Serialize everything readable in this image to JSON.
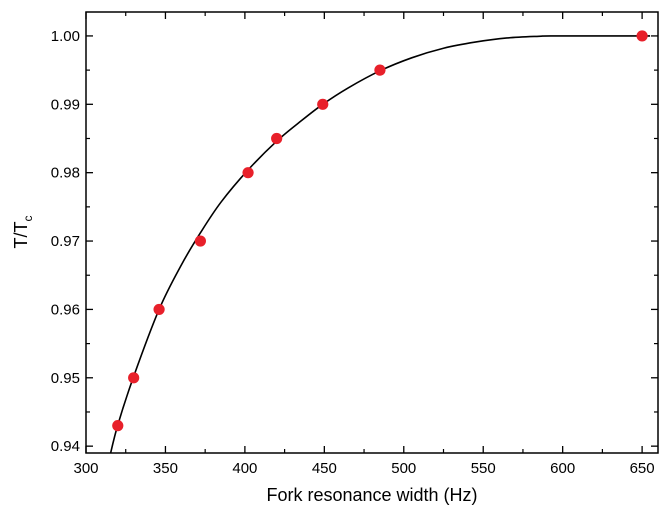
{
  "chart_data": {
    "type": "scatter",
    "xlabel": "Fork resonance width (Hz)",
    "ylabel": {
      "main": "T/T",
      "subscript": "c"
    },
    "xlim": [
      300,
      660
    ],
    "ylim": [
      0.939,
      1.0035
    ],
    "xticks": [
      300,
      350,
      400,
      450,
      500,
      550,
      600,
      650
    ],
    "xtick_labels": [
      "300",
      "350",
      "400",
      "450",
      "500",
      "550",
      "600",
      "650"
    ],
    "yticks": [
      0.94,
      0.95,
      0.96,
      0.97,
      0.98,
      0.99,
      1.0
    ],
    "ytick_labels": [
      "0.94",
      "0.95",
      "0.96",
      "0.97",
      "0.98",
      "0.99",
      "1.00"
    ],
    "grid": false,
    "legend": "none",
    "series": [
      {
        "kind": "points",
        "marker_color": "#e8202a",
        "points": [
          {
            "x": 320,
            "y": 0.943
          },
          {
            "x": 330,
            "y": 0.95
          },
          {
            "x": 346,
            "y": 0.96
          },
          {
            "x": 372,
            "y": 0.97
          },
          {
            "x": 402,
            "y": 0.98
          },
          {
            "x": 420,
            "y": 0.985
          },
          {
            "x": 449,
            "y": 0.99
          },
          {
            "x": 485,
            "y": 0.995
          },
          {
            "x": 650,
            "y": 1.0
          }
        ]
      },
      {
        "kind": "fit-line",
        "line_color": "#000000",
        "points": [
          {
            "x": 315,
            "y": 0.9385
          },
          {
            "x": 320,
            "y": 0.9431
          },
          {
            "x": 330,
            "y": 0.9502
          },
          {
            "x": 346,
            "y": 0.96
          },
          {
            "x": 360,
            "y": 0.9665
          },
          {
            "x": 372,
            "y": 0.9712
          },
          {
            "x": 385,
            "y": 0.9757
          },
          {
            "x": 402,
            "y": 0.9804
          },
          {
            "x": 420,
            "y": 0.9846
          },
          {
            "x": 435,
            "y": 0.9875
          },
          {
            "x": 449,
            "y": 0.99
          },
          {
            "x": 465,
            "y": 0.9924
          },
          {
            "x": 485,
            "y": 0.9949
          },
          {
            "x": 505,
            "y": 0.9968
          },
          {
            "x": 525,
            "y": 0.9982
          },
          {
            "x": 545,
            "y": 0.9991
          },
          {
            "x": 565,
            "y": 0.9997
          },
          {
            "x": 585,
            "y": 0.99995
          },
          {
            "x": 595,
            "y": 1.0
          },
          {
            "x": 655,
            "y": 1.0
          }
        ]
      }
    ]
  }
}
